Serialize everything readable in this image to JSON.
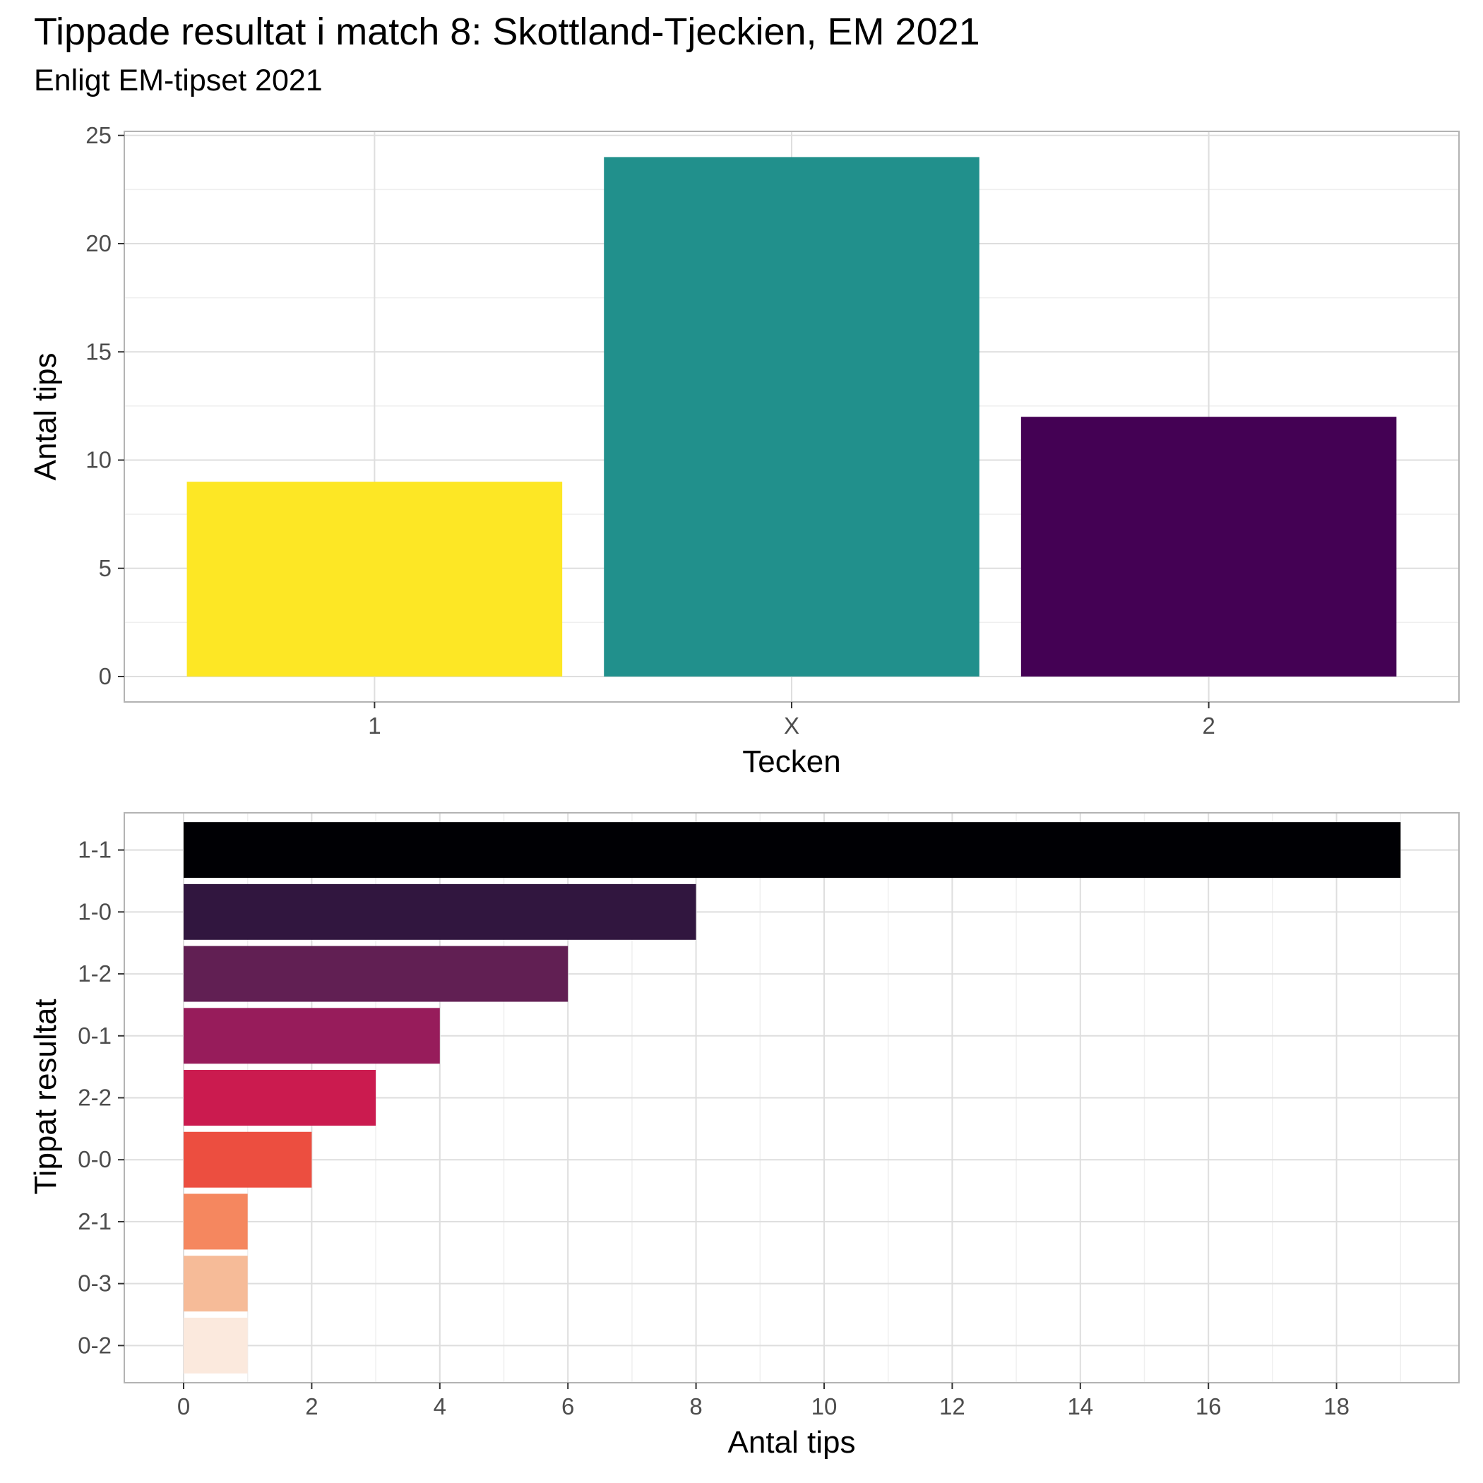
{
  "title": "Tippade resultat i match 8: Skottland-Tjeckien, EM 2021",
  "subtitle": "Enligt EM-tipset 2021",
  "chart_data": [
    {
      "type": "bar",
      "orientation": "vertical",
      "categories": [
        "1",
        "X",
        "2"
      ],
      "values": [
        9,
        24,
        12
      ],
      "colors": [
        "#FDE725",
        "#21908C",
        "#440154"
      ],
      "xlabel": "Tecken",
      "ylabel": "Antal tips",
      "ylim": [
        0,
        25
      ],
      "yticks": [
        "0",
        "5",
        "10",
        "15",
        "20",
        "25"
      ],
      "grid": true,
      "legend": "none"
    },
    {
      "type": "bar",
      "orientation": "horizontal",
      "categories": [
        "1-1",
        "1-0",
        "1-2",
        "0-1",
        "2-2",
        "0-0",
        "2-1",
        "0-3",
        "0-2"
      ],
      "values": [
        19,
        8,
        6,
        4,
        3,
        2,
        1,
        1,
        1
      ],
      "colors": [
        "#000004",
        "#31163F",
        "#611F53",
        "#971C5B",
        "#CB1B4F",
        "#EC4E40",
        "#F5875F",
        "#F6BB98",
        "#FBE9DD"
      ],
      "xlabel": "Antal tips",
      "ylabel": "Tippat resultat",
      "xlim": [
        0,
        20
      ],
      "xticks": [
        "0",
        "2",
        "4",
        "6",
        "8",
        "10",
        "12",
        "14",
        "16",
        "18"
      ],
      "grid": true,
      "legend": "none"
    }
  ]
}
